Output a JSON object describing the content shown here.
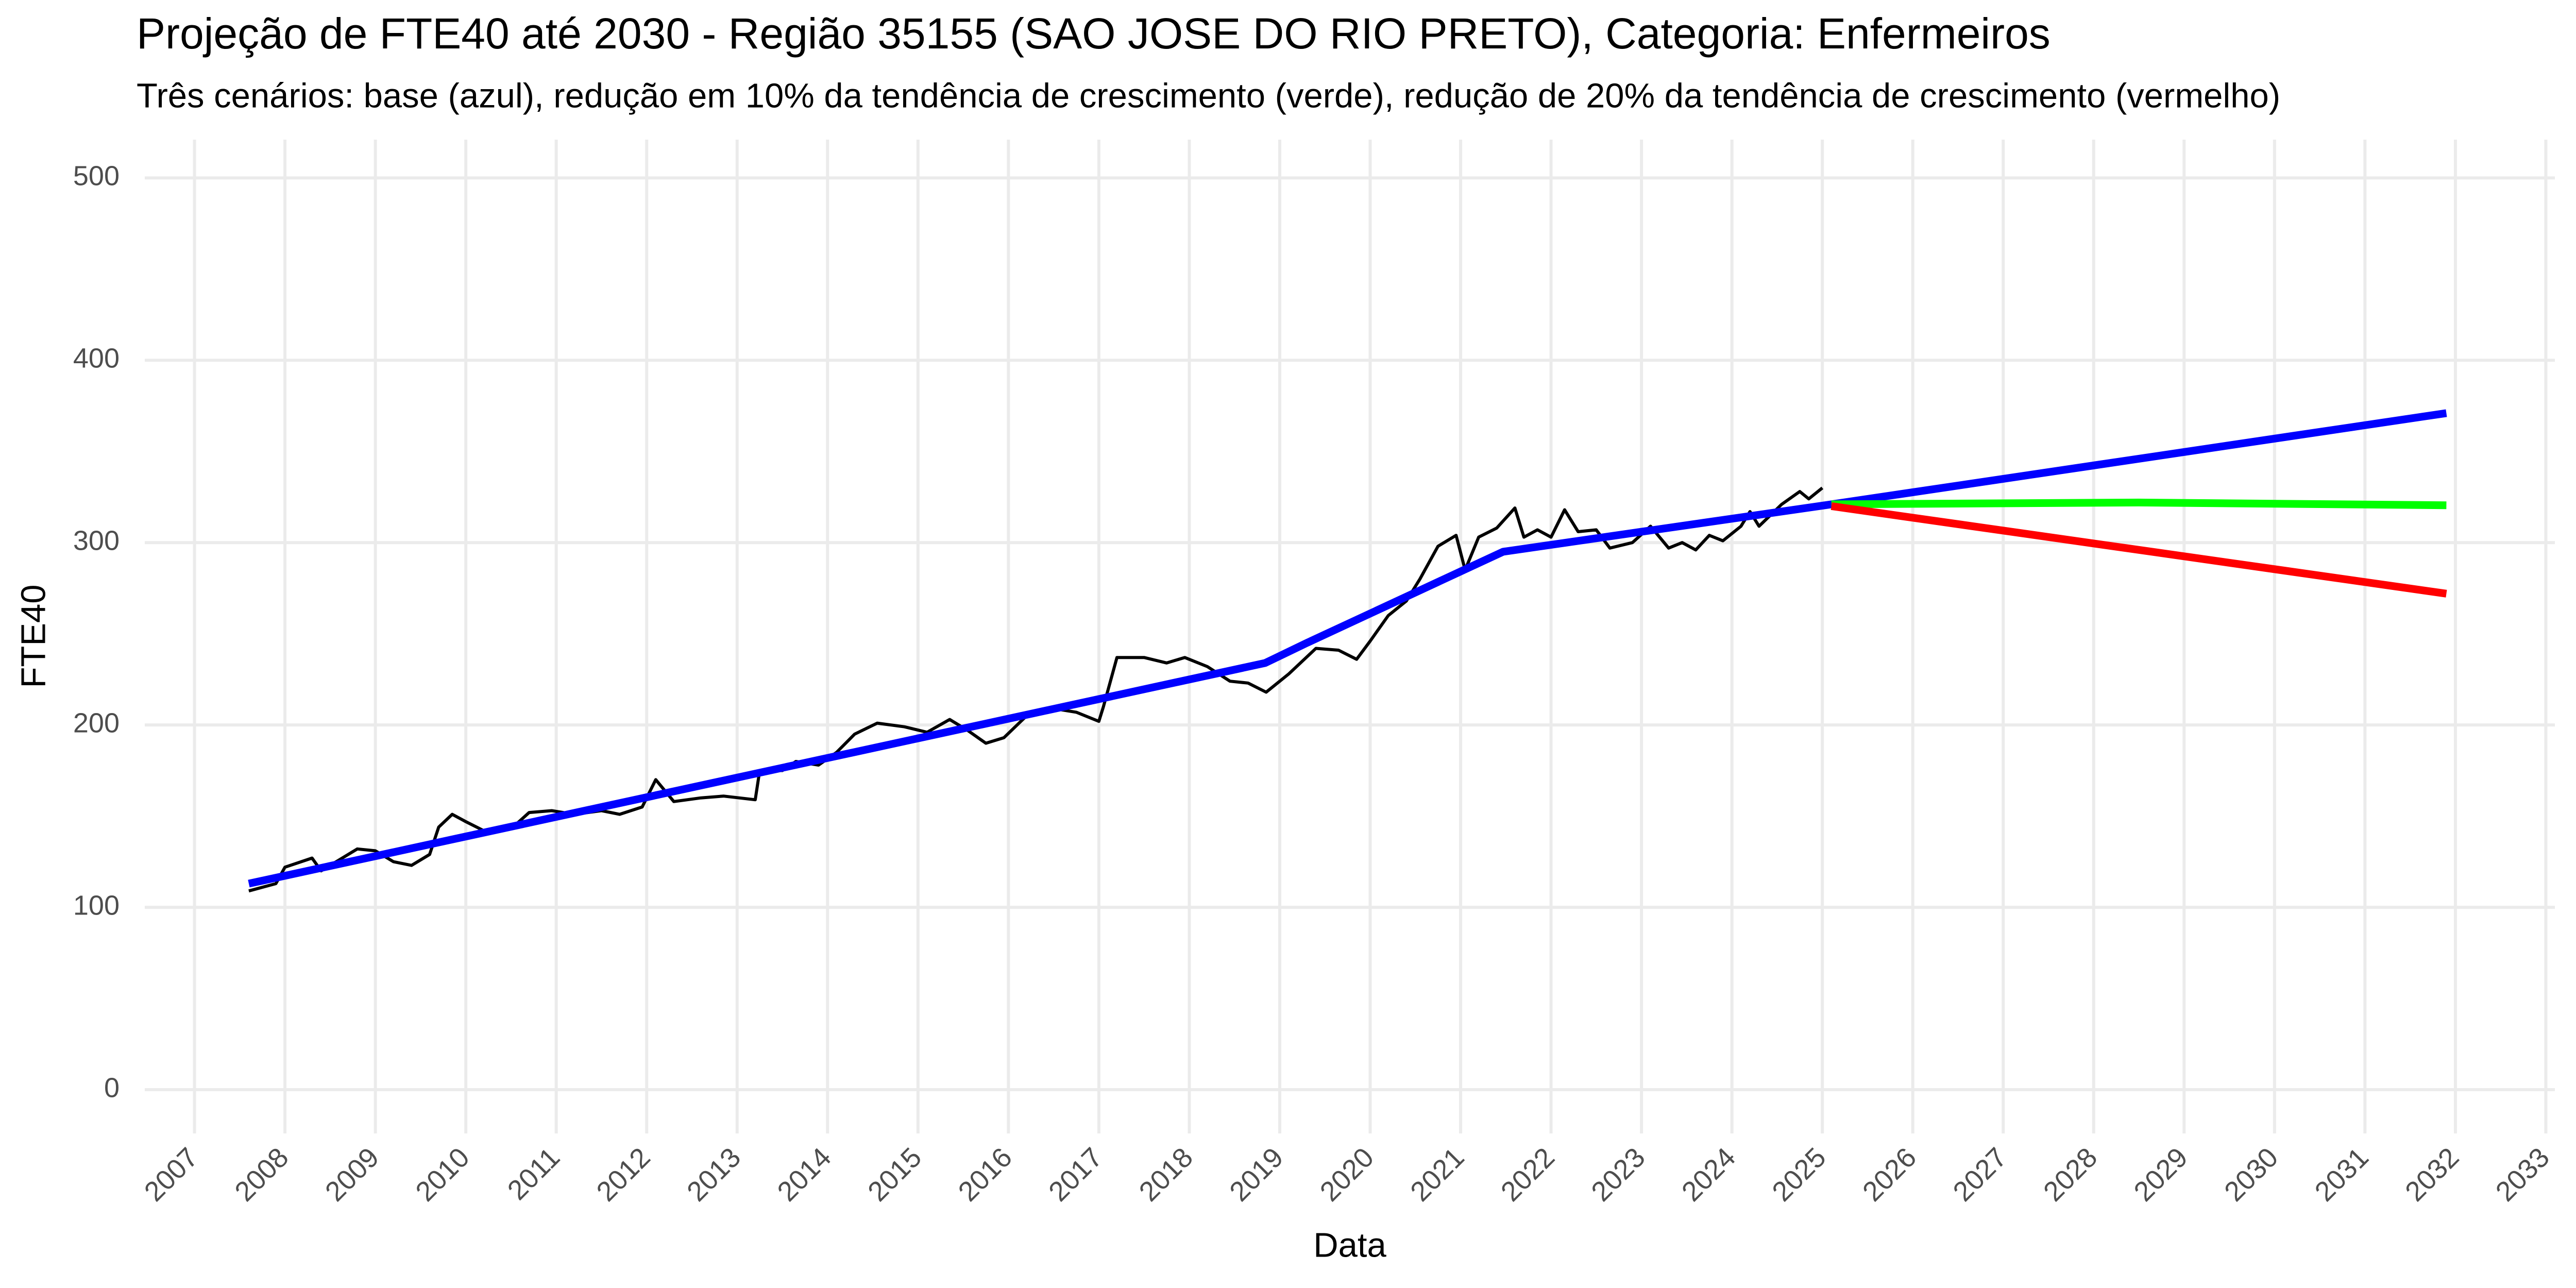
{
  "chart_data": {
    "type": "line",
    "title": "Projeção de FTE40 até 2030 - Região 35155 (SAO JOSE DO RIO PRETO), Categoria: Enfermeiros",
    "subtitle": "Três cenários: base (azul), redução em 10% da tendência de crescimento (verde), redução de 20% da tendência de crescimento (vermelho)",
    "x_label": "Data",
    "y_label": "FTE40",
    "xlim": [
      2006.45,
      2033.1
    ],
    "ylim": [
      -24,
      521
    ],
    "xticks": [
      2007,
      2008,
      2009,
      2010,
      2011,
      2012,
      2013,
      2014,
      2015,
      2016,
      2017,
      2018,
      2019,
      2020,
      2021,
      2022,
      2023,
      2024,
      2025,
      2026,
      2027,
      2028,
      2029,
      2030,
      2031,
      2032,
      2033
    ],
    "yticks": [
      0,
      100,
      200,
      300,
      400,
      500
    ],
    "grid": true,
    "series": [
      {
        "color": "#000000",
        "x": [
          2007.6,
          2007.9,
          2008.0,
          2008.3,
          2008.4,
          2008.8,
          2009.0,
          2009.2,
          2009.4,
          2009.6,
          2009.7,
          2009.85,
          2010.0,
          2010.2,
          2010.5,
          2010.7,
          2010.95,
          2011.2,
          2011.5,
          2011.7,
          2011.95,
          2012.1,
          2012.3,
          2012.6,
          2012.85,
          2013.2,
          2013.25,
          2013.5,
          2013.65,
          2013.9,
          2014.1,
          2014.3,
          2014.55,
          2014.85,
          2015.1,
          2015.35,
          2015.55,
          2015.75,
          2015.95,
          2016.2,
          2016.5,
          2016.75,
          2017.0,
          2017.05,
          2017.2,
          2017.5,
          2017.75,
          2017.95,
          2018.2,
          2018.45,
          2018.65,
          2018.85,
          2019.1,
          2019.4,
          2019.65,
          2019.85,
          2020.0,
          2020.2,
          2020.4,
          2020.55,
          2020.75,
          2020.95,
          2021.05,
          2021.2,
          2021.4,
          2021.6,
          2021.7,
          2021.85,
          2022.0,
          2022.15,
          2022.3,
          2022.5,
          2022.65,
          2022.9,
          2023.1,
          2023.3,
          2023.45,
          2023.6,
          2023.75,
          2023.9,
          2024.1,
          2024.2,
          2024.3,
          2024.55,
          2024.75,
          2024.85,
          2025.0
        ],
        "values": [
          109,
          113,
          122,
          127,
          120,
          132,
          131,
          125,
          123,
          129,
          144,
          151,
          147,
          142,
          143,
          152,
          153,
          151,
          153,
          151,
          155,
          170,
          158,
          160,
          161,
          159,
          175,
          175,
          180,
          178,
          185,
          195,
          201,
          199,
          196,
          203,
          197,
          190,
          193,
          205,
          209,
          207,
          202,
          210,
          237,
          237,
          234,
          237,
          232,
          224,
          223,
          218,
          228,
          242,
          241,
          236,
          246,
          260,
          268,
          280,
          298,
          304,
          285,
          303,
          308,
          319,
          303,
          307,
          303,
          318,
          306,
          307,
          297,
          300,
          309,
          297,
          300,
          296,
          304,
          301,
          309,
          317,
          309,
          321,
          328,
          324,
          330
        ]
      },
      {
        "color": "#0000ff",
        "x": [
          2007.6,
          2018.84,
          2019.3,
          2021.47,
          2025.1,
          2031.9
        ],
        "values": [
          113,
          234,
          245,
          295,
          321,
          371
        ]
      },
      {
        "color": "#00ff00",
        "x": [
          2025.1,
          2028.5,
          2031.9
        ],
        "values": [
          321,
          322,
          320.5
        ]
      },
      {
        "color": "#ff0000",
        "x": [
          2025.1,
          2031.9
        ],
        "values": [
          320,
          272
        ]
      }
    ]
  }
}
